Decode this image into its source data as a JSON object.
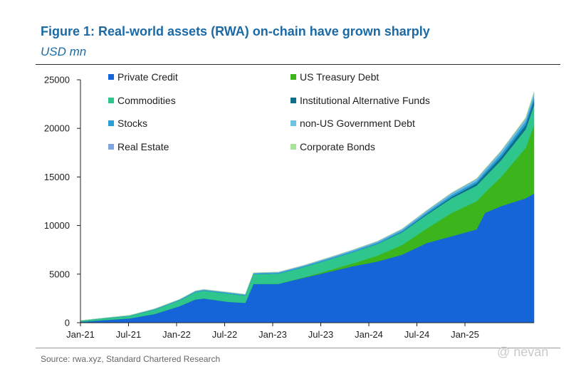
{
  "title": "Figure 1: Real-world assets (RWA) on-chain have grown sharply",
  "subtitle": "USD mn",
  "source": "Source: rwa.xyz, Standard Chartered Research",
  "watermark": "@ nevan",
  "chart_data": {
    "type": "area",
    "stacked": true,
    "title": "Figure 1: Real-world assets (RWA) on-chain have grown sharply",
    "ylabel": "USD mn",
    "ylim": [
      0,
      25000
    ],
    "yticks": [
      "0",
      "5000",
      "10000",
      "15000",
      "20000",
      "25000"
    ],
    "xticks": [
      "Jan-21",
      "Jul-21",
      "Jan-22",
      "Jul-22",
      "Jan-23",
      "Jul-23",
      "Jan-24",
      "Jul-24",
      "Jan-25"
    ],
    "grid": false,
    "legend_position": "top-left",
    "x": [
      "2021-01",
      "2021-04",
      "2021-07",
      "2021-10",
      "2022-01",
      "2022-03",
      "2022-04",
      "2022-07",
      "2022-09",
      "2022-10",
      "2023-01",
      "2023-04",
      "2023-07",
      "2023-10",
      "2024-01",
      "2024-04",
      "2024-07",
      "2024-10",
      "2025-01",
      "2025-02",
      "2025-04",
      "2025-07",
      "2025-08"
    ],
    "series": [
      {
        "name": "Private Credit",
        "color": "#1565d8",
        "values": [
          100,
          280,
          450,
          900,
          1700,
          2400,
          2500,
          2150,
          2050,
          4000,
          4000,
          4600,
          5200,
          5800,
          6300,
          7000,
          8200,
          8900,
          9600,
          11300,
          12000,
          12800,
          13300
        ]
      },
      {
        "name": "US Treasury Debt",
        "color": "#3cb51c",
        "values": [
          0,
          0,
          0,
          0,
          0,
          0,
          0,
          0,
          0,
          0,
          0,
          50,
          150,
          300,
          600,
          1000,
          1500,
          2400,
          2900,
          2100,
          3000,
          5200,
          7100
        ]
      },
      {
        "name": "Commodities",
        "color": "#2fc68e",
        "values": [
          100,
          180,
          250,
          450,
          600,
          750,
          800,
          850,
          750,
          1000,
          1050,
          1050,
          1100,
          1150,
          1200,
          1300,
          1400,
          1500,
          1600,
          1600,
          1700,
          1900,
          2000
        ]
      },
      {
        "name": "Institutional Alternative Funds",
        "color": "#0f6e8e",
        "values": [
          0,
          0,
          0,
          0,
          0,
          0,
          0,
          0,
          0,
          0,
          0,
          0,
          0,
          0,
          20,
          50,
          100,
          150,
          250,
          300,
          350,
          450,
          500
        ]
      },
      {
        "name": "Stocks",
        "color": "#2a9fd6",
        "values": [
          20,
          30,
          40,
          50,
          60,
          80,
          80,
          90,
          80,
          90,
          100,
          100,
          110,
          120,
          130,
          150,
          170,
          200,
          220,
          250,
          300,
          350,
          400
        ]
      },
      {
        "name": "non-US Government Debt",
        "color": "#6cc3e6",
        "values": [
          0,
          0,
          0,
          0,
          0,
          0,
          0,
          0,
          0,
          0,
          10,
          20,
          30,
          40,
          50,
          60,
          80,
          100,
          120,
          130,
          150,
          180,
          200
        ]
      },
      {
        "name": "Real Estate",
        "color": "#7fa5df",
        "values": [
          0,
          10,
          20,
          30,
          40,
          50,
          50,
          50,
          50,
          50,
          60,
          60,
          70,
          70,
          80,
          80,
          90,
          100,
          100,
          110,
          120,
          130,
          150
        ]
      },
      {
        "name": "Corporate Bonds",
        "color": "#a8e39a",
        "values": [
          0,
          0,
          0,
          0,
          0,
          0,
          0,
          0,
          0,
          0,
          0,
          0,
          0,
          10,
          10,
          20,
          30,
          40,
          50,
          60,
          80,
          100,
          120
        ]
      }
    ]
  }
}
